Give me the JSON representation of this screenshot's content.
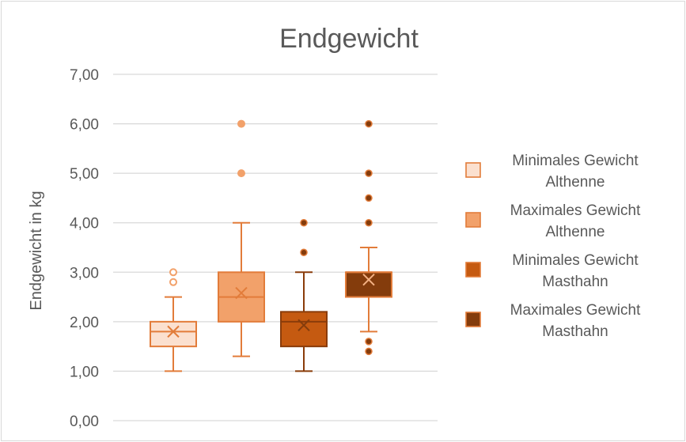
{
  "chart_data": {
    "type": "box",
    "title": "Endgewicht",
    "ylabel": "Endgewicht in kg",
    "xlabel": "",
    "ylim": [
      0,
      7
    ],
    "yticks": [
      "0,00",
      "1,00",
      "2,00",
      "3,00",
      "4,00",
      "5,00",
      "6,00",
      "7,00"
    ],
    "grid": true,
    "legend_position": "right",
    "series": [
      {
        "name": "Minimales Gewicht Althenne",
        "name_lines": [
          "Minimales Gewicht",
          "Althenne"
        ],
        "fill": "#fbe0cf",
        "stroke": "#e27c3a",
        "whisker_low": 1.0,
        "q1": 1.5,
        "median": 1.8,
        "mean": 1.8,
        "q3": 2.0,
        "whisker_high": 2.5,
        "outliers": [
          2.8,
          3.0
        ],
        "outlier_style": "hollow"
      },
      {
        "name": "Maximales Gewicht Althenne",
        "name_lines": [
          "Maximales Gewicht",
          "Althenne"
        ],
        "fill": "#f2a16a",
        "stroke": "#e27c3a",
        "whisker_low": 1.3,
        "q1": 2.0,
        "median": 2.5,
        "mean": 2.58,
        "q3": 3.0,
        "whisker_high": 4.0,
        "outliers": [
          5.0,
          6.0
        ],
        "outlier_style": "filled"
      },
      {
        "name": "Minimales Gewicht Masthahn",
        "name_lines": [
          "Minimales Gewicht",
          "Masthahn"
        ],
        "fill": "#c55a11",
        "stroke": "#8a3c0a",
        "whisker_low": 1.0,
        "q1": 1.5,
        "median": 2.0,
        "mean": 1.93,
        "q3": 2.2,
        "whisker_high": 3.0,
        "outliers": [
          3.4,
          4.0
        ],
        "outlier_style": "filled-dark"
      },
      {
        "name": "Maximales Gewicht Masthahn",
        "name_lines": [
          "Maximales Gewicht",
          "Masthahn"
        ],
        "fill": "#843c0c",
        "stroke": "#e27c3a",
        "whisker_low": 1.8,
        "q1": 2.5,
        "median": 3.0,
        "mean": 2.85,
        "q3": 3.0,
        "whisker_high": 3.5,
        "outliers": [
          1.4,
          1.6,
          4.0,
          4.5,
          5.0,
          6.0
        ],
        "outlier_style": "filled-dark"
      }
    ]
  }
}
